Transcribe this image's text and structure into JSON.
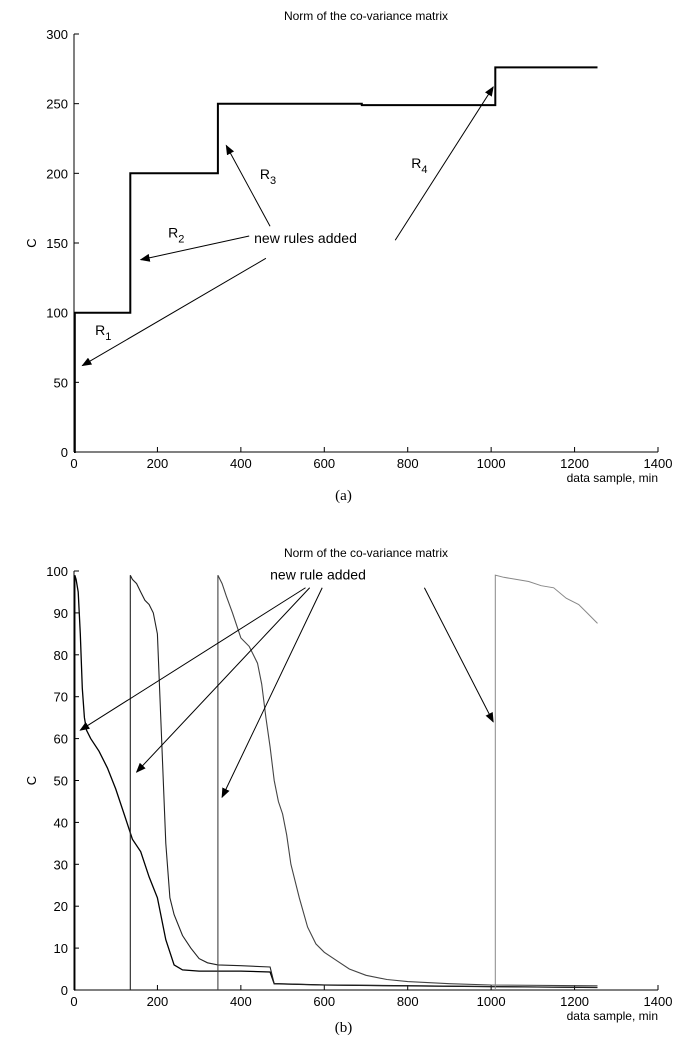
{
  "chart_data": [
    {
      "type": "line",
      "title": "Norm of the co-variance matrix",
      "xlabel": "data sample, min",
      "ylabel": "C",
      "xlim": [
        0,
        1400
      ],
      "ylim": [
        0,
        300
      ],
      "xticks": [
        0,
        200,
        400,
        600,
        800,
        1000,
        1200,
        1400
      ],
      "yticks": [
        0,
        50,
        100,
        150,
        200,
        250,
        300
      ],
      "series": [
        {
          "x": [
            0,
            2,
            2,
            135,
            135,
            345,
            345,
            690,
            690,
            1010,
            1010,
            1255
          ],
          "y": [
            0,
            0,
            100,
            100,
            200,
            200,
            250,
            250,
            249,
            249,
            276,
            276
          ]
        }
      ],
      "annotations": [
        {
          "text": "new rules added",
          "x": 555,
          "y": 150
        },
        {
          "text": "R1",
          "base": "R",
          "sub": "1",
          "x": 70,
          "y": 84
        },
        {
          "text": "R2",
          "base": "R",
          "sub": "2",
          "x": 245,
          "y": 154
        },
        {
          "text": "R3",
          "base": "R",
          "sub": "3",
          "x": 465,
          "y": 196
        },
        {
          "text": "R4",
          "base": "R",
          "sub": "4",
          "x": 828,
          "y": 204
        }
      ],
      "arrows": [
        {
          "from": [
            460,
            139
          ],
          "to": [
            20,
            62
          ]
        },
        {
          "from": [
            420,
            155
          ],
          "to": [
            160,
            138
          ]
        },
        {
          "from": [
            470,
            162
          ],
          "to": [
            365,
            220
          ]
        },
        {
          "from": [
            770,
            152
          ],
          "to": [
            1005,
            262
          ]
        }
      ],
      "caption": "(a)"
    },
    {
      "type": "line",
      "title": "Norm of the co-variance matrix",
      "xlabel": "data sample, min",
      "ylabel": "C",
      "xlim": [
        0,
        1400
      ],
      "ylim": [
        0,
        100
      ],
      "xticks": [
        0,
        200,
        400,
        600,
        800,
        1000,
        1200,
        1400
      ],
      "yticks": [
        0,
        10,
        20,
        30,
        40,
        50,
        60,
        70,
        80,
        90,
        100
      ],
      "series": [
        {
          "x": [
            0,
            2,
            2,
            5,
            10,
            15,
            20,
            25,
            30,
            40,
            60,
            80,
            100,
            120,
            140,
            160,
            180,
            200,
            220,
            240,
            260,
            300,
            400,
            470,
            480,
            600,
            800,
            1000,
            1255
          ],
          "y": [
            0,
            0,
            99,
            98,
            95,
            85,
            72,
            65,
            62,
            60,
            57,
            53,
            48,
            42,
            36,
            33,
            27,
            22,
            12,
            6,
            4.8,
            4.5,
            4.5,
            4.3,
            1.5,
            1.2,
            1.0,
            0.8,
            0.6
          ]
        },
        {
          "x": [
            135,
            135,
            140,
            150,
            160,
            170,
            180,
            190,
            200,
            210,
            220,
            230,
            240,
            260,
            280,
            300,
            320,
            345,
            400,
            470,
            480,
            600,
            800,
            1000,
            1255
          ],
          "y": [
            0,
            99,
            98,
            97,
            95,
            93,
            92,
            90,
            85,
            60,
            35,
            22,
            18,
            13,
            10,
            7.5,
            6.5,
            6,
            5.8,
            5.5,
            1.5,
            1.2,
            1.0,
            0.8,
            0.6
          ]
        },
        {
          "x": [
            345,
            345,
            355,
            365,
            380,
            400,
            420,
            440,
            450,
            460,
            470,
            480,
            490,
            500,
            510,
            520,
            540,
            560,
            580,
            600,
            630,
            660,
            700,
            750,
            800,
            900,
            1000,
            1255
          ],
          "y": [
            0,
            99,
            97,
            94,
            90,
            84,
            82,
            78,
            73,
            65,
            58,
            50,
            45,
            42,
            37,
            30,
            22,
            15,
            11,
            9,
            7,
            5,
            3.5,
            2.5,
            2.0,
            1.5,
            1.2,
            1.0
          ]
        },
        {
          "x": [
            1010,
            1010,
            1030,
            1060,
            1090,
            1120,
            1150,
            1180,
            1210,
            1230,
            1255
          ],
          "y": [
            0,
            99,
            98.5,
            98,
            97.5,
            96.5,
            96,
            93.5,
            92,
            90,
            87.5
          ]
        }
      ],
      "annotations": [
        {
          "text": "new rule added",
          "x": 585,
          "y": 98
        }
      ],
      "arrows": [
        {
          "from": [
            555,
            96
          ],
          "to": [
            15,
            62
          ]
        },
        {
          "from": [
            565,
            96
          ],
          "to": [
            150,
            52
          ]
        },
        {
          "from": [
            595,
            96
          ],
          "to": [
            355,
            46
          ]
        },
        {
          "from": [
            840,
            96
          ],
          "to": [
            1005,
            64
          ]
        }
      ],
      "caption": "(b)"
    }
  ]
}
